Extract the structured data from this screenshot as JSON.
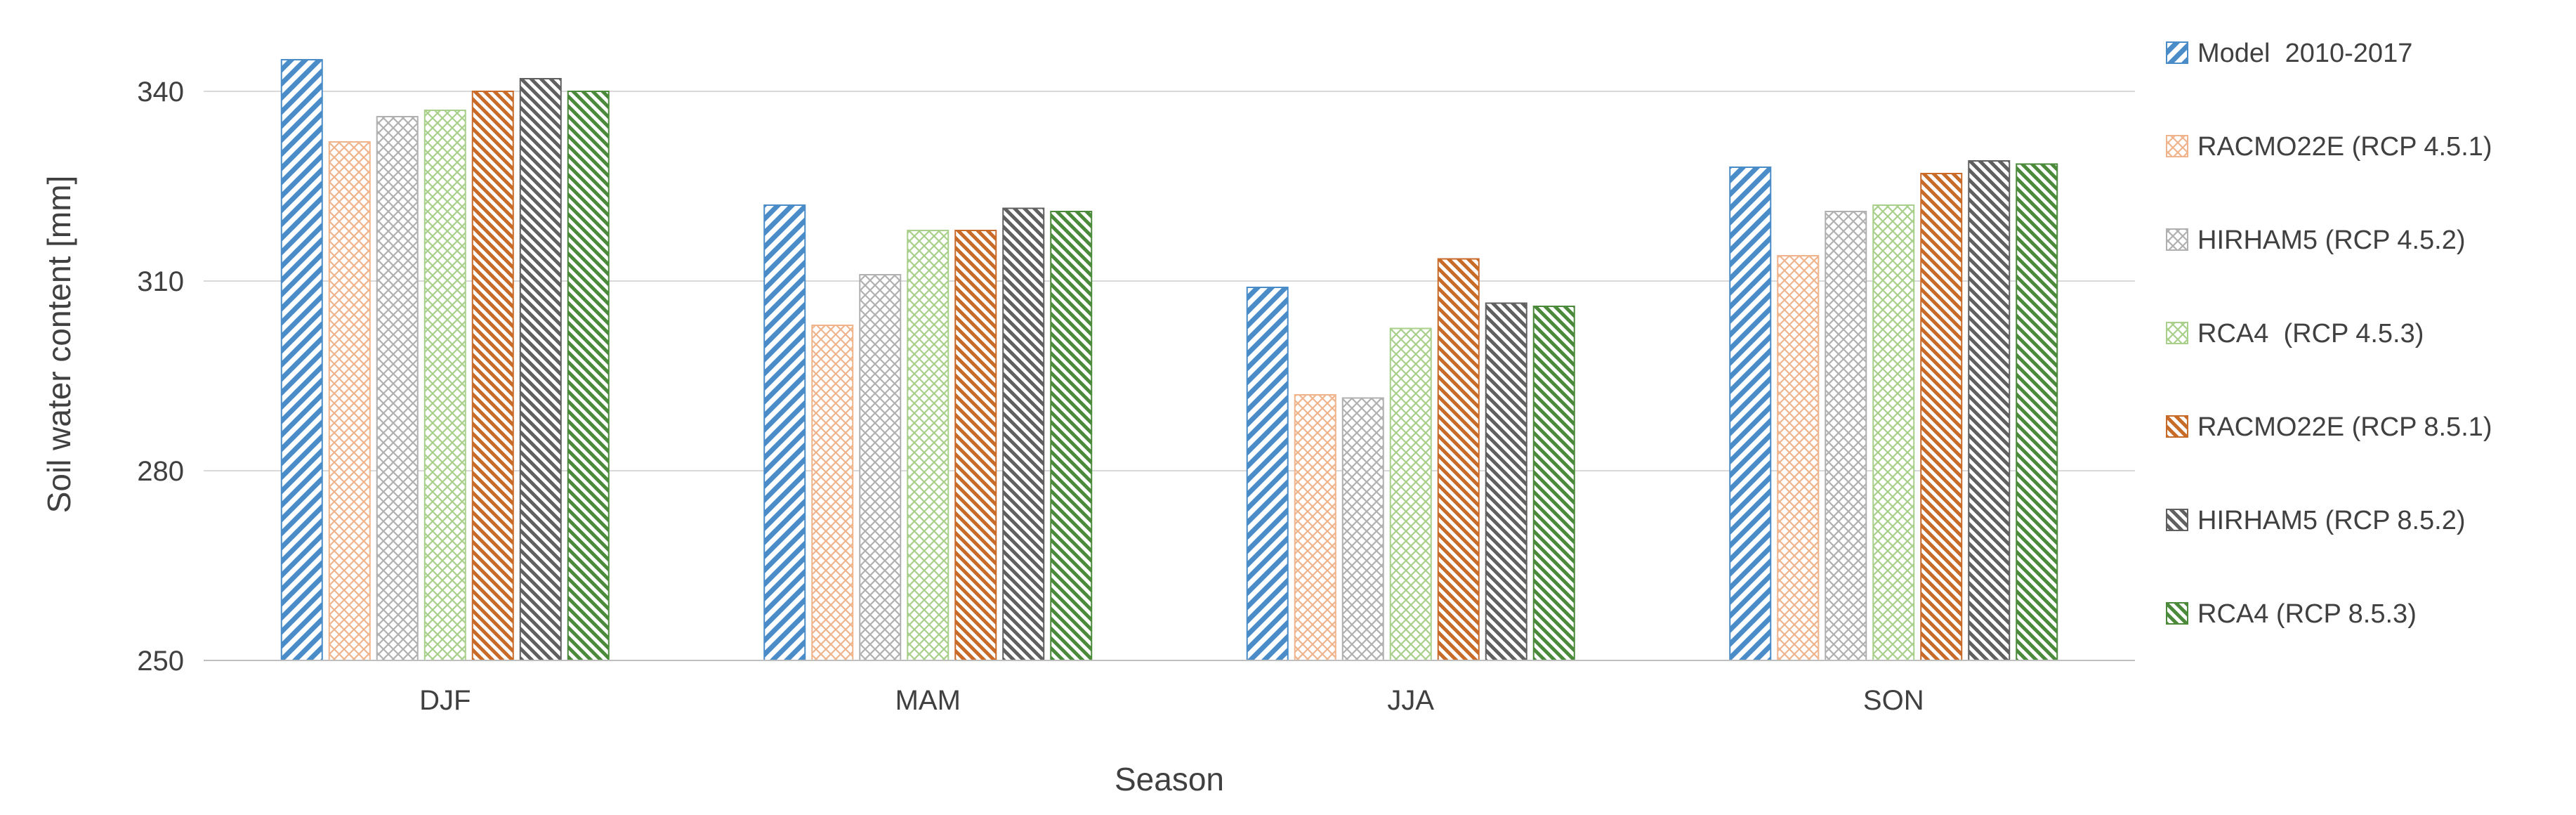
{
  "chart_data": {
    "type": "bar",
    "title": "",
    "xlabel": "Season",
    "ylabel": "Soil water content [mm]",
    "ylim": [
      250,
      350
    ],
    "yticks": [
      250,
      280,
      310,
      340
    ],
    "categories": [
      "DJF",
      "MAM",
      "JJA",
      "SON"
    ],
    "grid": true,
    "legend_position": "right",
    "series": [
      {
        "name": "Model  2010-2017",
        "values": [
          345,
          322,
          309,
          328
        ],
        "color": "#4a8cc8",
        "pattern": "diag-up"
      },
      {
        "name": "RACMO22E (RCP 4.5.1)",
        "values": [
          332,
          303,
          292,
          314
        ],
        "color": "#f0b48c",
        "pattern": "crosshatch"
      },
      {
        "name": "HIRHAM5 (RCP 4.5.2)",
        "values": [
          336,
          311,
          291.5,
          321
        ],
        "color": "#b0b0b0",
        "pattern": "crosshatch"
      },
      {
        "name": "RCA4  (RCP 4.5.3)",
        "values": [
          337,
          318,
          302.5,
          322
        ],
        "color": "#a8d08a",
        "pattern": "crosshatch"
      },
      {
        "name": "RACMO22E (RCP 8.5.1)",
        "values": [
          340,
          318,
          313.5,
          327
        ],
        "color": "#c86a28",
        "pattern": "diag-down"
      },
      {
        "name": "HIRHAM5 (RCP 8.5.2)",
        "values": [
          342,
          321.5,
          306.5,
          329
        ],
        "color": "#606060",
        "pattern": "diag-down"
      },
      {
        "name": "RCA4 (RCP 8.5.3)",
        "values": [
          340,
          321,
          306,
          328.5
        ],
        "color": "#4a8a3a",
        "pattern": "diag-down"
      }
    ]
  }
}
